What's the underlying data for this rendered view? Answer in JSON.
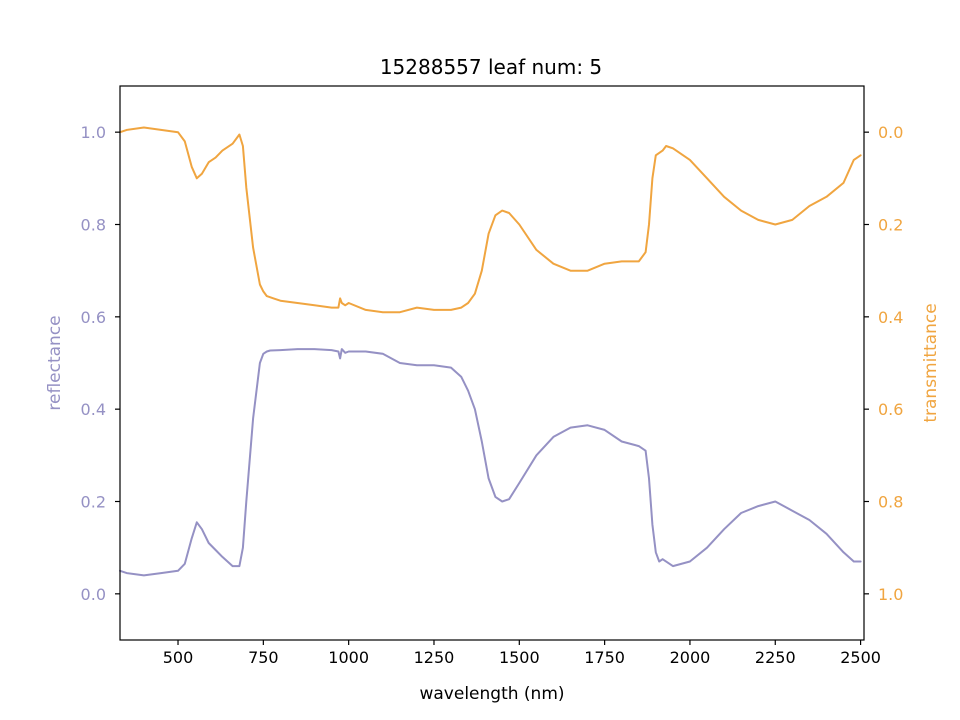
{
  "chart_data": {
    "type": "line",
    "title": "15288557 leaf num: 5",
    "xlabel": "wavelength (nm)",
    "ylabel_left": "reflectance",
    "ylabel_right": "transmittance",
    "xlim": [
      330,
      2510
    ],
    "ylim_left": [
      -0.1,
      1.1
    ],
    "ylim_right": [
      1.1,
      -0.1
    ],
    "right_axis_inverted": true,
    "x_ticks": [
      500,
      750,
      1000,
      1250,
      1500,
      1750,
      2000,
      2250,
      2500
    ],
    "x_tick_labels": [
      "500",
      "750",
      "1000",
      "1250",
      "1500",
      "1750",
      "2000",
      "2250",
      "2500"
    ],
    "y_left_ticks": [
      0.0,
      0.2,
      0.4,
      0.6,
      0.8,
      1.0
    ],
    "y_left_tick_labels": [
      "0.0",
      "0.2",
      "0.4",
      "0.6",
      "0.8",
      "1.0"
    ],
    "y_right_ticks": [
      0.0,
      0.2,
      0.4,
      0.6,
      0.8,
      1.0
    ],
    "y_right_tick_labels": [
      "0.0",
      "0.2",
      "0.4",
      "0.6",
      "0.8",
      "1.0"
    ],
    "grid": false,
    "colors": {
      "reflectance": "#9591c4",
      "transmittance": "#f0a540"
    },
    "series": [
      {
        "key": "reflectance",
        "axis": "left",
        "color": "#9591c4",
        "x": [
          330,
          350,
          400,
          450,
          500,
          520,
          540,
          555,
          570,
          590,
          610,
          630,
          660,
          680,
          690,
          700,
          720,
          740,
          750,
          760,
          770,
          800,
          850,
          900,
          950,
          970,
          975,
          980,
          990,
          1000,
          1050,
          1100,
          1150,
          1200,
          1250,
          1300,
          1330,
          1350,
          1370,
          1390,
          1410,
          1430,
          1450,
          1470,
          1500,
          1550,
          1600,
          1650,
          1700,
          1750,
          1800,
          1850,
          1870,
          1880,
          1890,
          1900,
          1910,
          1920,
          1950,
          2000,
          2050,
          2100,
          2150,
          2200,
          2250,
          2300,
          2350,
          2400,
          2450,
          2480,
          2500
        ],
        "y": [
          0.05,
          0.045,
          0.04,
          0.045,
          0.05,
          0.065,
          0.12,
          0.155,
          0.14,
          0.11,
          0.095,
          0.08,
          0.06,
          0.06,
          0.1,
          0.2,
          0.38,
          0.5,
          0.52,
          0.525,
          0.527,
          0.528,
          0.53,
          0.53,
          0.528,
          0.525,
          0.51,
          0.53,
          0.522,
          0.525,
          0.525,
          0.52,
          0.5,
          0.495,
          0.495,
          0.49,
          0.47,
          0.44,
          0.4,
          0.33,
          0.25,
          0.21,
          0.2,
          0.205,
          0.24,
          0.3,
          0.34,
          0.36,
          0.365,
          0.355,
          0.33,
          0.32,
          0.31,
          0.25,
          0.15,
          0.09,
          0.07,
          0.075,
          0.06,
          0.07,
          0.1,
          0.14,
          0.175,
          0.19,
          0.2,
          0.18,
          0.16,
          0.13,
          0.09,
          0.07,
          0.07
        ]
      },
      {
        "key": "transmittance",
        "axis": "right",
        "color": "#f0a540",
        "x": [
          330,
          350,
          400,
          450,
          500,
          520,
          540,
          555,
          570,
          590,
          610,
          630,
          660,
          680,
          690,
          700,
          720,
          740,
          750,
          760,
          780,
          800,
          850,
          900,
          950,
          970,
          975,
          980,
          990,
          1000,
          1050,
          1100,
          1150,
          1200,
          1250,
          1300,
          1330,
          1350,
          1370,
          1390,
          1410,
          1430,
          1450,
          1470,
          1500,
          1550,
          1600,
          1650,
          1700,
          1750,
          1800,
          1850,
          1870,
          1880,
          1890,
          1900,
          1910,
          1920,
          1930,
          1950,
          2000,
          2050,
          2100,
          2150,
          2200,
          2250,
          2300,
          2350,
          2400,
          2450,
          2480,
          2500
        ],
        "y": [
          0.0,
          -0.005,
          -0.01,
          -0.005,
          0.0,
          0.02,
          0.075,
          0.1,
          0.09,
          0.065,
          0.055,
          0.04,
          0.025,
          0.005,
          0.03,
          0.12,
          0.25,
          0.33,
          0.345,
          0.355,
          0.36,
          0.365,
          0.37,
          0.375,
          0.38,
          0.38,
          0.36,
          0.37,
          0.375,
          0.37,
          0.385,
          0.39,
          0.39,
          0.38,
          0.385,
          0.385,
          0.38,
          0.37,
          0.35,
          0.3,
          0.22,
          0.18,
          0.17,
          0.175,
          0.2,
          0.255,
          0.285,
          0.3,
          0.3,
          0.285,
          0.28,
          0.28,
          0.26,
          0.2,
          0.1,
          0.05,
          0.045,
          0.04,
          0.03,
          0.035,
          0.06,
          0.1,
          0.14,
          0.17,
          0.19,
          0.2,
          0.19,
          0.16,
          0.14,
          0.11,
          0.06,
          0.05
        ]
      }
    ]
  }
}
